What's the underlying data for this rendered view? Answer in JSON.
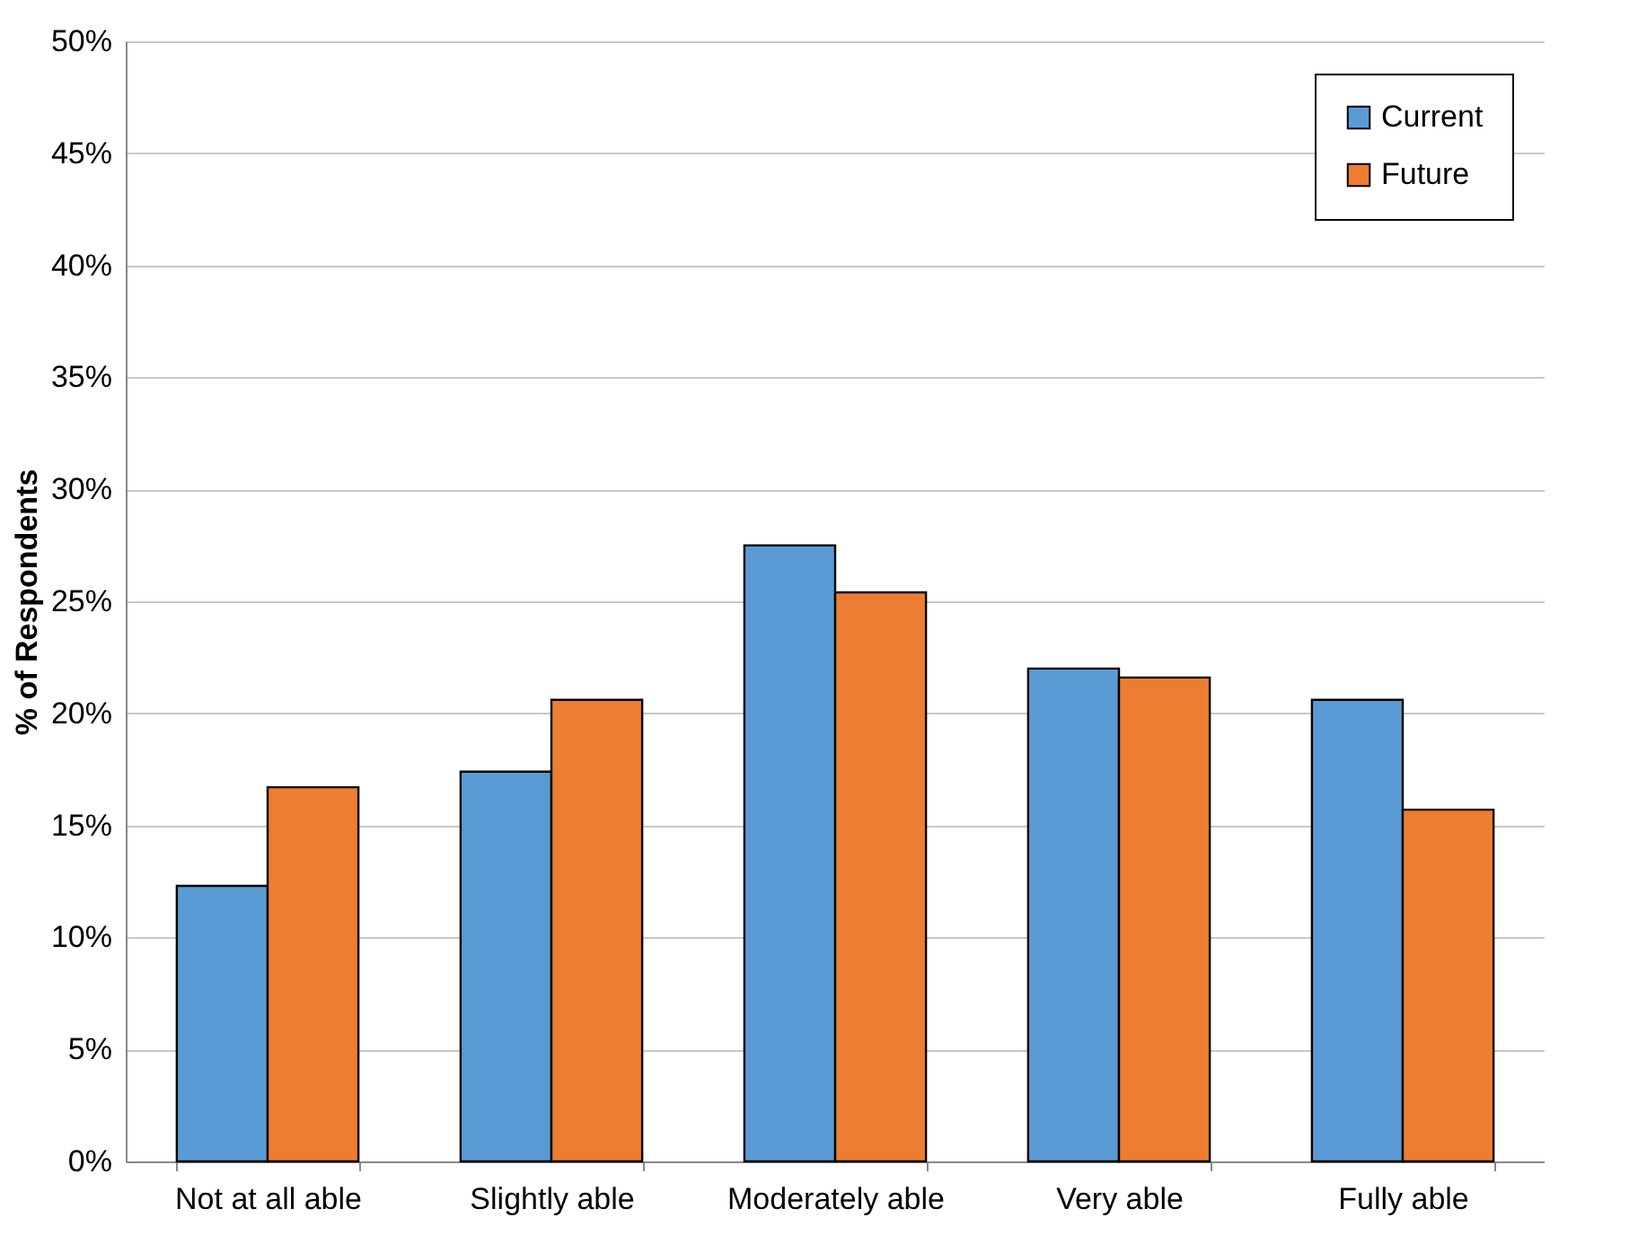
{
  "chart_data": {
    "type": "bar",
    "ylabel": "% of Respondents",
    "categories": [
      "Not at all able",
      "Slightly able",
      "Moderately able",
      "Very able",
      "Fully able"
    ],
    "series": [
      {
        "name": "Current",
        "color": "#5b9bd5",
        "values": [
          12.3,
          17.4,
          27.5,
          22.0,
          20.6
        ]
      },
      {
        "name": "Future",
        "color": "#ed7d31",
        "values": [
          16.7,
          20.6,
          25.4,
          21.6,
          15.7
        ]
      }
    ],
    "ylim": [
      0,
      50
    ],
    "yticks": [
      {
        "value": 0,
        "label": "0%"
      },
      {
        "value": 5,
        "label": "5%"
      },
      {
        "value": 10,
        "label": "10%"
      },
      {
        "value": 15,
        "label": "15%"
      },
      {
        "value": 20,
        "label": "20%"
      },
      {
        "value": 25,
        "label": "25%"
      },
      {
        "value": 30,
        "label": "30%"
      },
      {
        "value": 35,
        "label": "35%"
      },
      {
        "value": 40,
        "label": "40%"
      },
      {
        "value": 45,
        "label": "45%"
      },
      {
        "value": 50,
        "label": "50%"
      }
    ],
    "grid": "y",
    "legend": "top right"
  }
}
